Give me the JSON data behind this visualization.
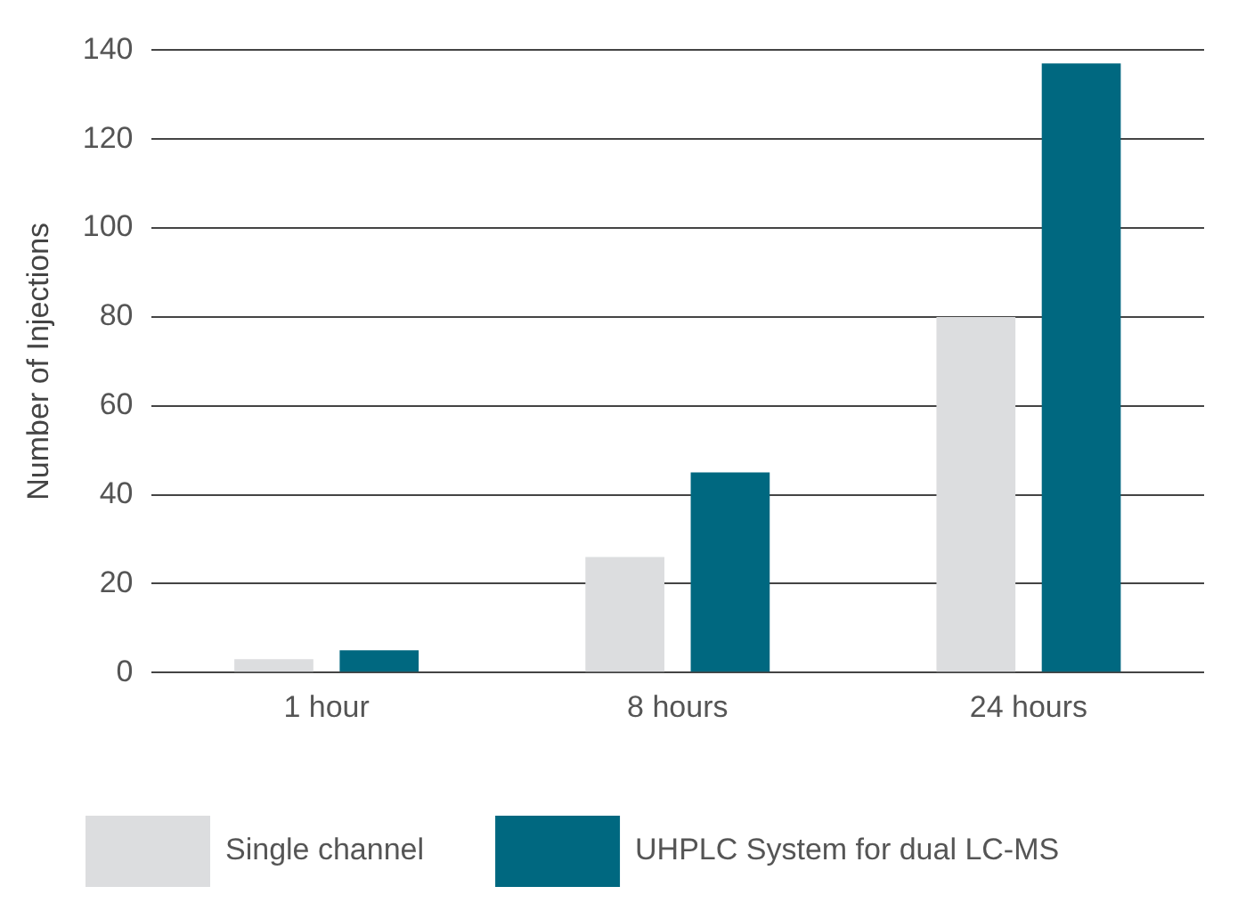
{
  "chart_data": {
    "type": "bar",
    "ylabel": "Number of Injections",
    "categories": [
      "1 hour",
      "8 hours",
      "24 hours"
    ],
    "series": [
      {
        "name": "Single channel",
        "color": "#dcdddf",
        "values": [
          3,
          26,
          80
        ]
      },
      {
        "name": "UHPLC System for dual LC-MS",
        "color": "#006880",
        "values": [
          5,
          45,
          137
        ]
      }
    ],
    "ylim": [
      0,
      140
    ],
    "yticks": [
      0,
      20,
      40,
      60,
      80,
      100,
      120,
      140
    ],
    "grid": "y",
    "legend": "bottom"
  }
}
